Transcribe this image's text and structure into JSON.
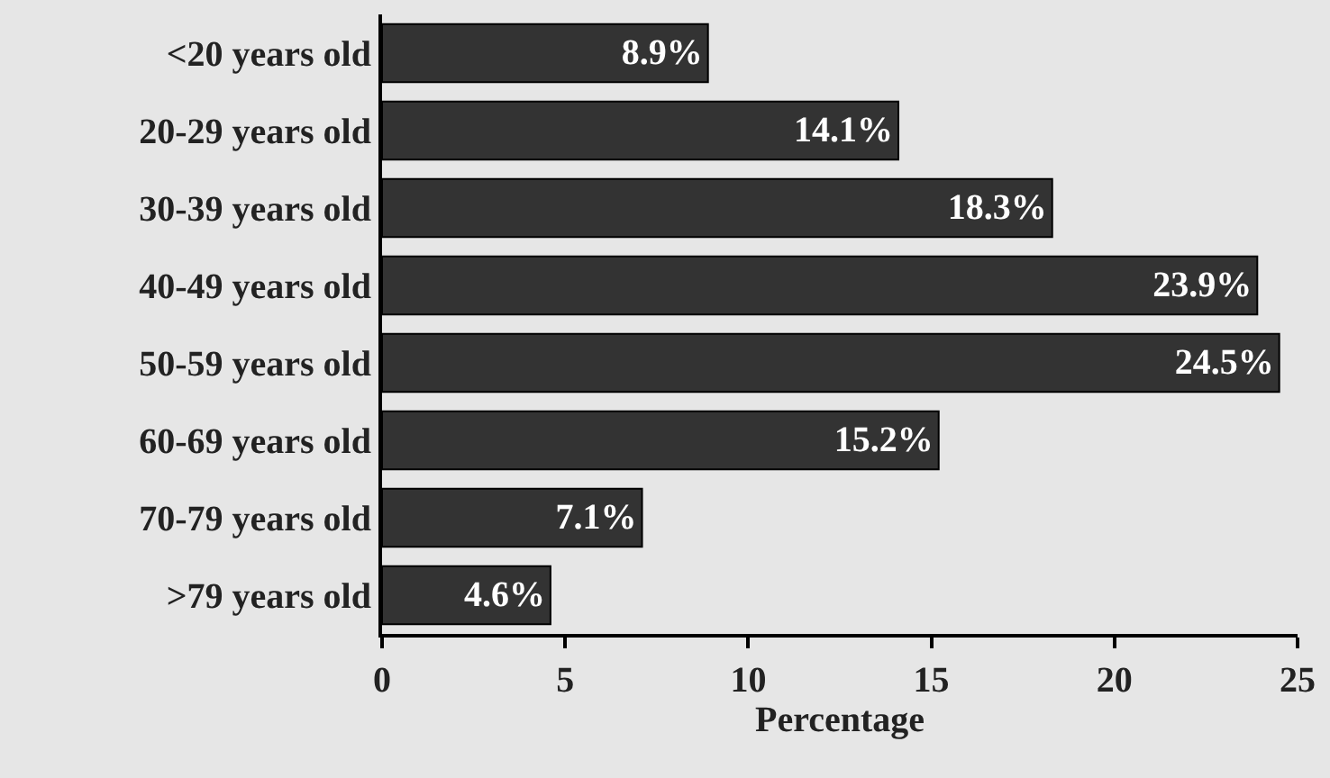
{
  "chart_data": {
    "type": "bar",
    "orientation": "horizontal",
    "xlabel": "Percentage",
    "categories": [
      "<20 years old",
      "20-29 years old",
      "30-39 years old",
      "40-49 years old",
      "50-59 years old",
      "60-69 years old",
      "70-79 years old",
      ">79 years old"
    ],
    "values": [
      8.9,
      14.1,
      18.3,
      23.9,
      24.5,
      15.2,
      7.1,
      4.6
    ],
    "value_labels": [
      "8.9%",
      "14.1%",
      "18.3%",
      "23.9%",
      "24.5%",
      "15.2%",
      "7.1%",
      "4.6%"
    ],
    "color": "#333333",
    "xlim": [
      0,
      25
    ],
    "xticks": [
      0,
      5,
      10,
      15,
      20,
      25
    ],
    "grid": false,
    "legend": false
  }
}
